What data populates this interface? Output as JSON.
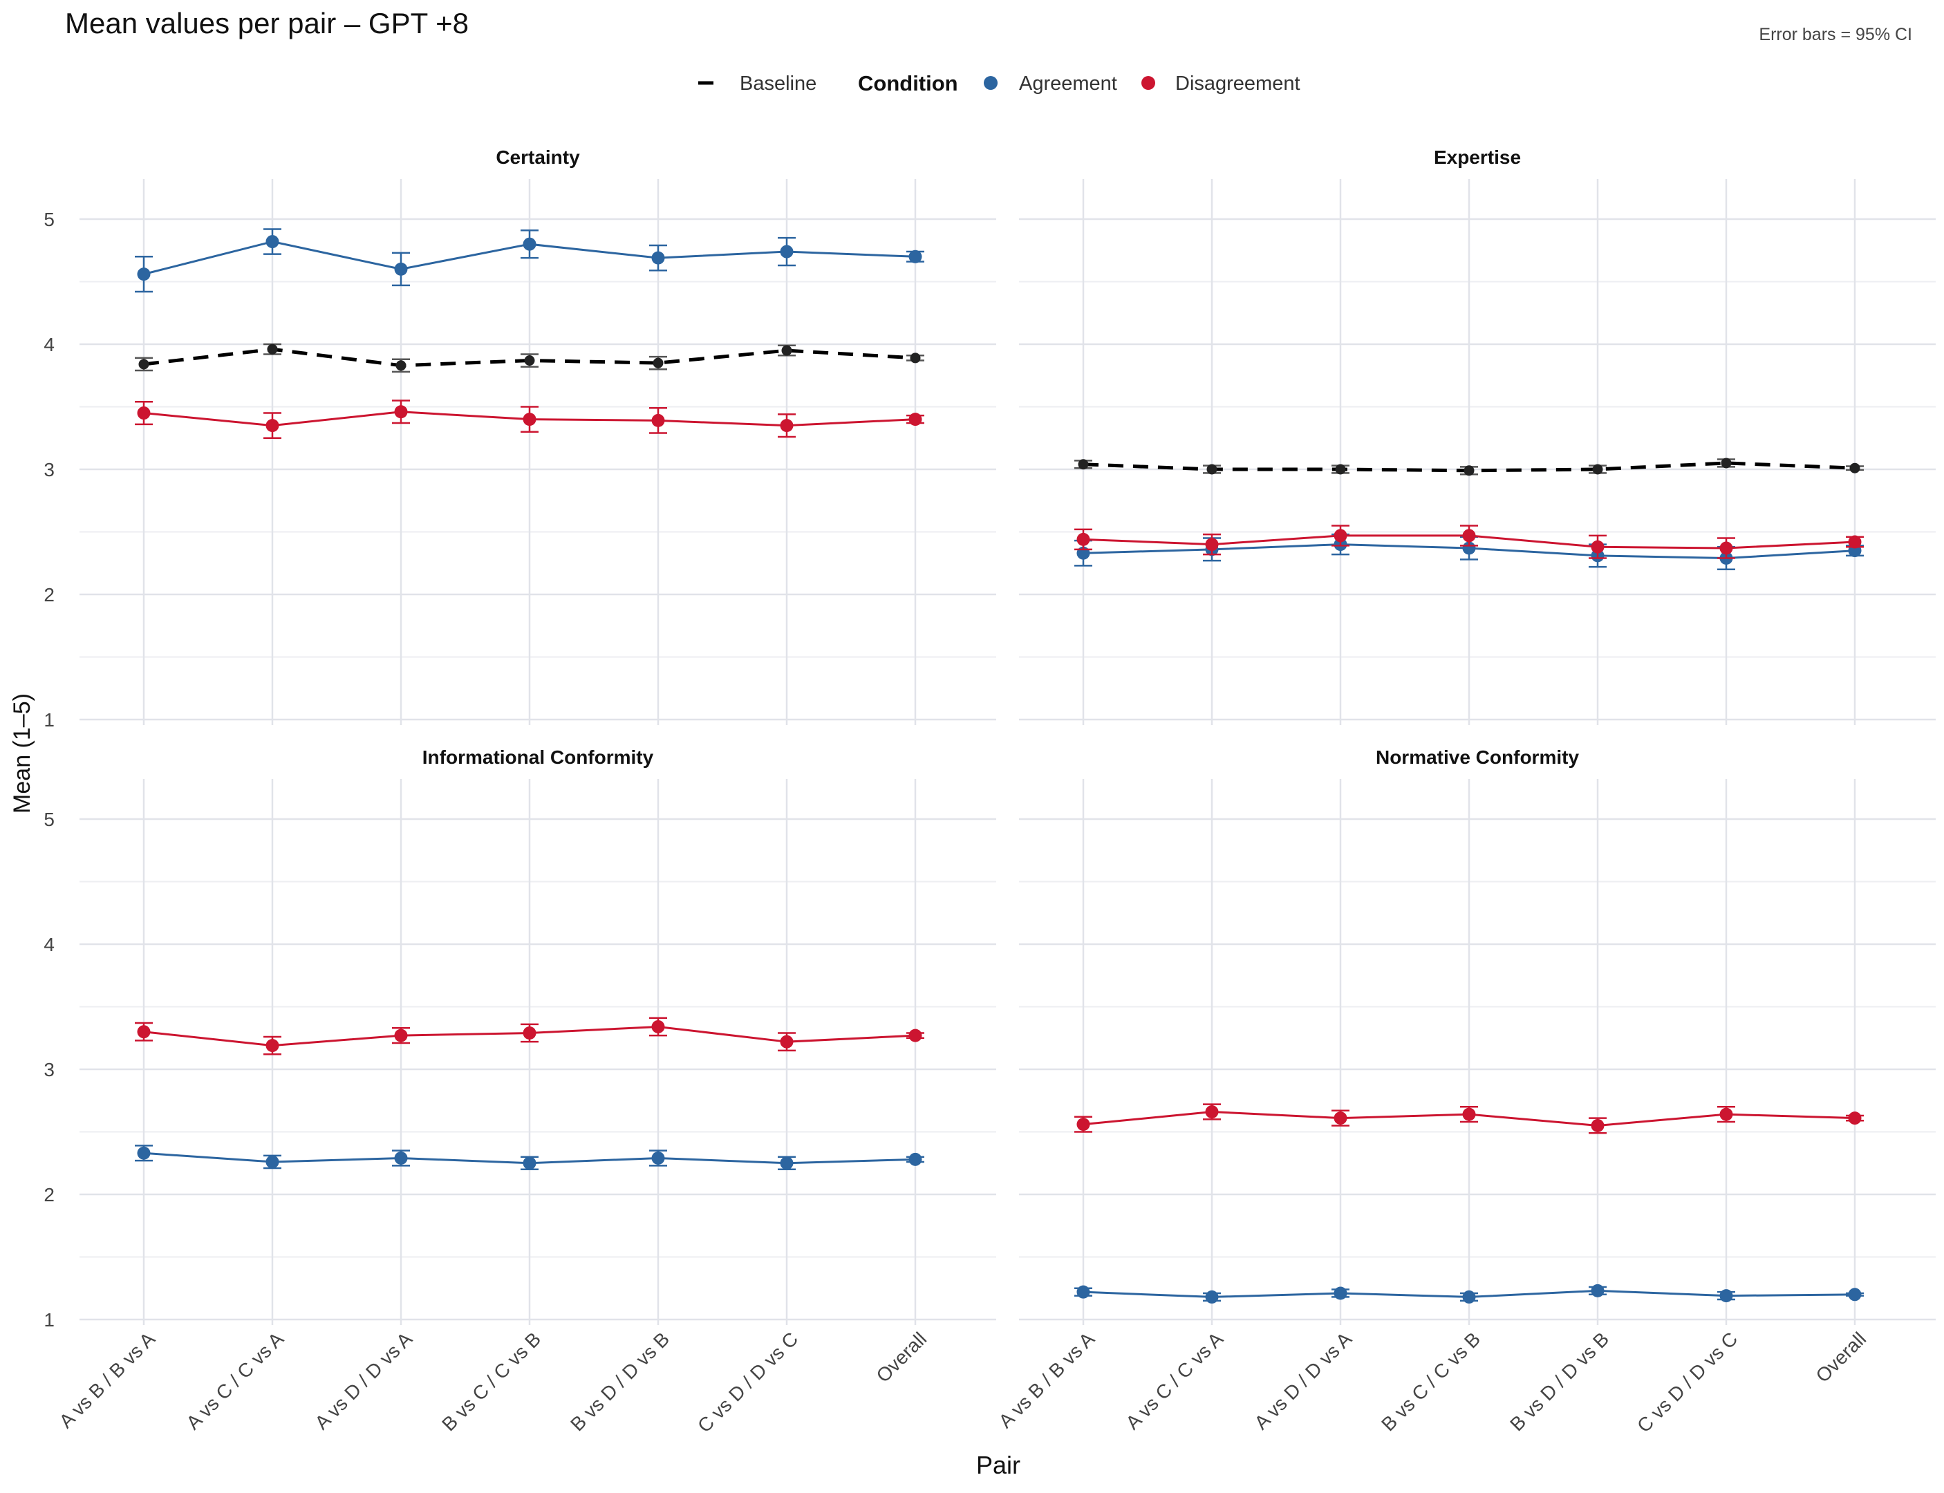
{
  "chart_data": {
    "type": "line",
    "title": "Mean values per pair – GPT +8",
    "note": "Error bars = 95% CI",
    "xlabel": "Pair",
    "ylabel": "Mean (1–5)",
    "ylim": [
      1,
      5
    ],
    "yticks": [
      1,
      2,
      3,
      4,
      5
    ],
    "categories": [
      "A vs B / B vs A",
      "A vs C / C vs A",
      "A vs D / D vs A",
      "B vs C / C vs B",
      "B vs D / D vs B",
      "C vs D / D vs C",
      "Overall"
    ],
    "legend": {
      "baseline_label": "Baseline",
      "condition_title": "Condition",
      "agreement_label": "Agreement",
      "disagreement_label": "Disagreement",
      "placement": "top-center"
    },
    "colors": {
      "agreement": "#2C65A0",
      "disagreement": "#CC1530",
      "baseline": "#000000"
    },
    "panels": [
      {
        "title": "Certainty",
        "agreement": {
          "values": [
            4.56,
            4.82,
            4.6,
            4.8,
            4.69,
            4.74,
            4.7
          ],
          "ci": [
            0.14,
            0.1,
            0.13,
            0.11,
            0.1,
            0.11,
            0.04
          ]
        },
        "disagreement": {
          "values": [
            3.45,
            3.35,
            3.46,
            3.4,
            3.39,
            3.35,
            3.4
          ],
          "ci": [
            0.09,
            0.1,
            0.09,
            0.1,
            0.1,
            0.09,
            0.03
          ]
        },
        "baseline": {
          "values": [
            3.84,
            3.96,
            3.83,
            3.87,
            3.85,
            3.95,
            3.89
          ],
          "ci": [
            0.05,
            0.04,
            0.05,
            0.05,
            0.05,
            0.04,
            0.02
          ]
        }
      },
      {
        "title": "Expertise",
        "agreement": {
          "values": [
            2.33,
            2.36,
            2.4,
            2.37,
            2.31,
            2.29,
            2.35
          ],
          "ci": [
            0.1,
            0.09,
            0.08,
            0.09,
            0.09,
            0.09,
            0.04
          ]
        },
        "disagreement": {
          "values": [
            2.44,
            2.4,
            2.47,
            2.47,
            2.38,
            2.37,
            2.42
          ],
          "ci": [
            0.08,
            0.08,
            0.08,
            0.08,
            0.09,
            0.08,
            0.04
          ]
        },
        "baseline": {
          "values": [
            3.04,
            3.0,
            3.0,
            2.99,
            3.0,
            3.05,
            3.01
          ],
          "ci": [
            0.03,
            0.03,
            0.03,
            0.03,
            0.03,
            0.03,
            0.015
          ]
        }
      },
      {
        "title": "Informational Conformity",
        "agreement": {
          "values": [
            2.33,
            2.26,
            2.29,
            2.25,
            2.29,
            2.25,
            2.28
          ],
          "ci": [
            0.06,
            0.05,
            0.06,
            0.05,
            0.06,
            0.05,
            0.02
          ]
        },
        "disagreement": {
          "values": [
            3.3,
            3.19,
            3.27,
            3.29,
            3.34,
            3.22,
            3.27
          ],
          "ci": [
            0.07,
            0.07,
            0.06,
            0.07,
            0.07,
            0.07,
            0.02
          ]
        }
      },
      {
        "title": "Normative Conformity",
        "agreement": {
          "values": [
            1.22,
            1.18,
            1.21,
            1.18,
            1.23,
            1.19,
            1.2
          ],
          "ci": [
            0.03,
            0.03,
            0.03,
            0.03,
            0.03,
            0.03,
            0.01
          ]
        },
        "disagreement": {
          "values": [
            2.56,
            2.66,
            2.61,
            2.64,
            2.55,
            2.64,
            2.61
          ],
          "ci": [
            0.06,
            0.06,
            0.06,
            0.06,
            0.06,
            0.06,
            0.02
          ]
        }
      }
    ]
  }
}
